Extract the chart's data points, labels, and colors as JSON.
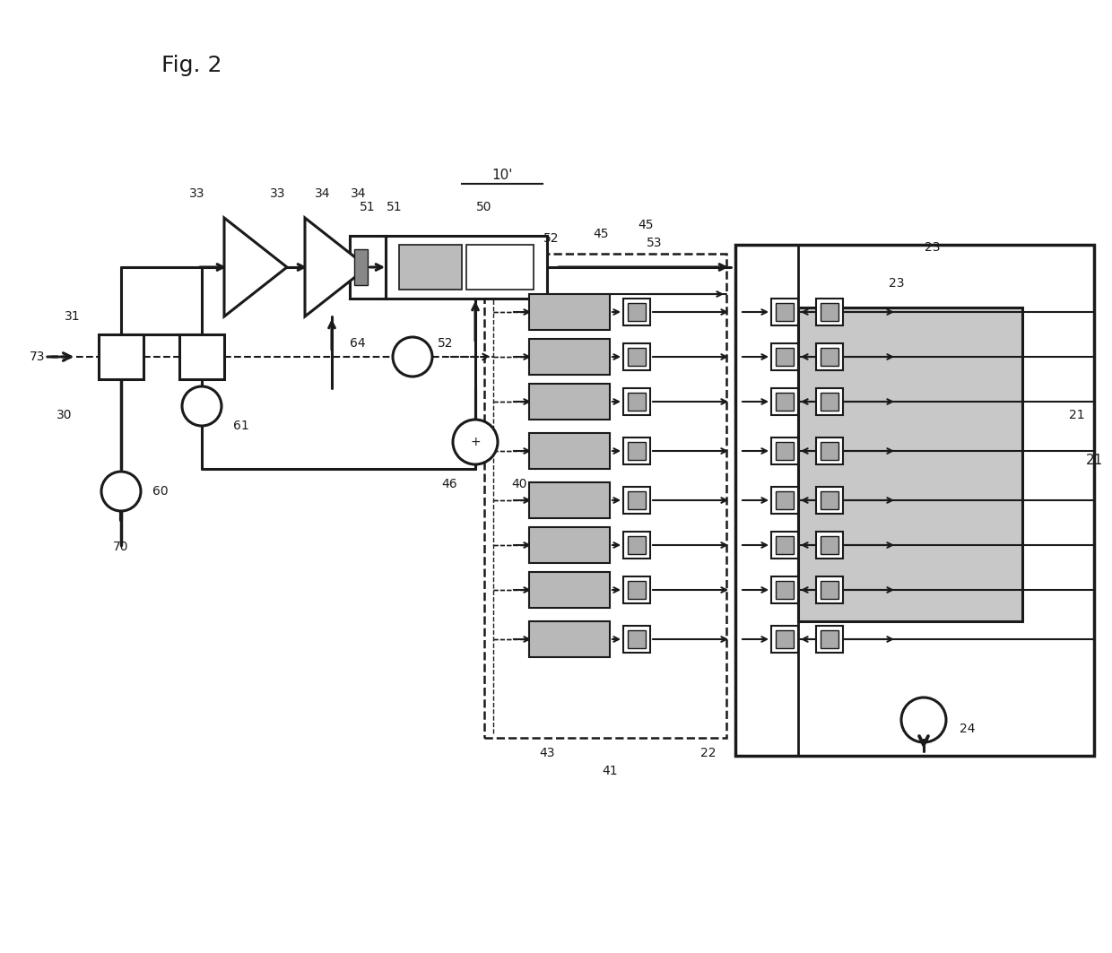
{
  "title": "Fig. 2",
  "label_10prime": "10'",
  "bg_color": "#ffffff",
  "line_color": "#1a1a1a",
  "box_fill_light": "#d0d0d0",
  "box_fill_dark": "#555555",
  "dashed_box_color": "#222222",
  "fig_width": 12.4,
  "fig_height": 10.63
}
